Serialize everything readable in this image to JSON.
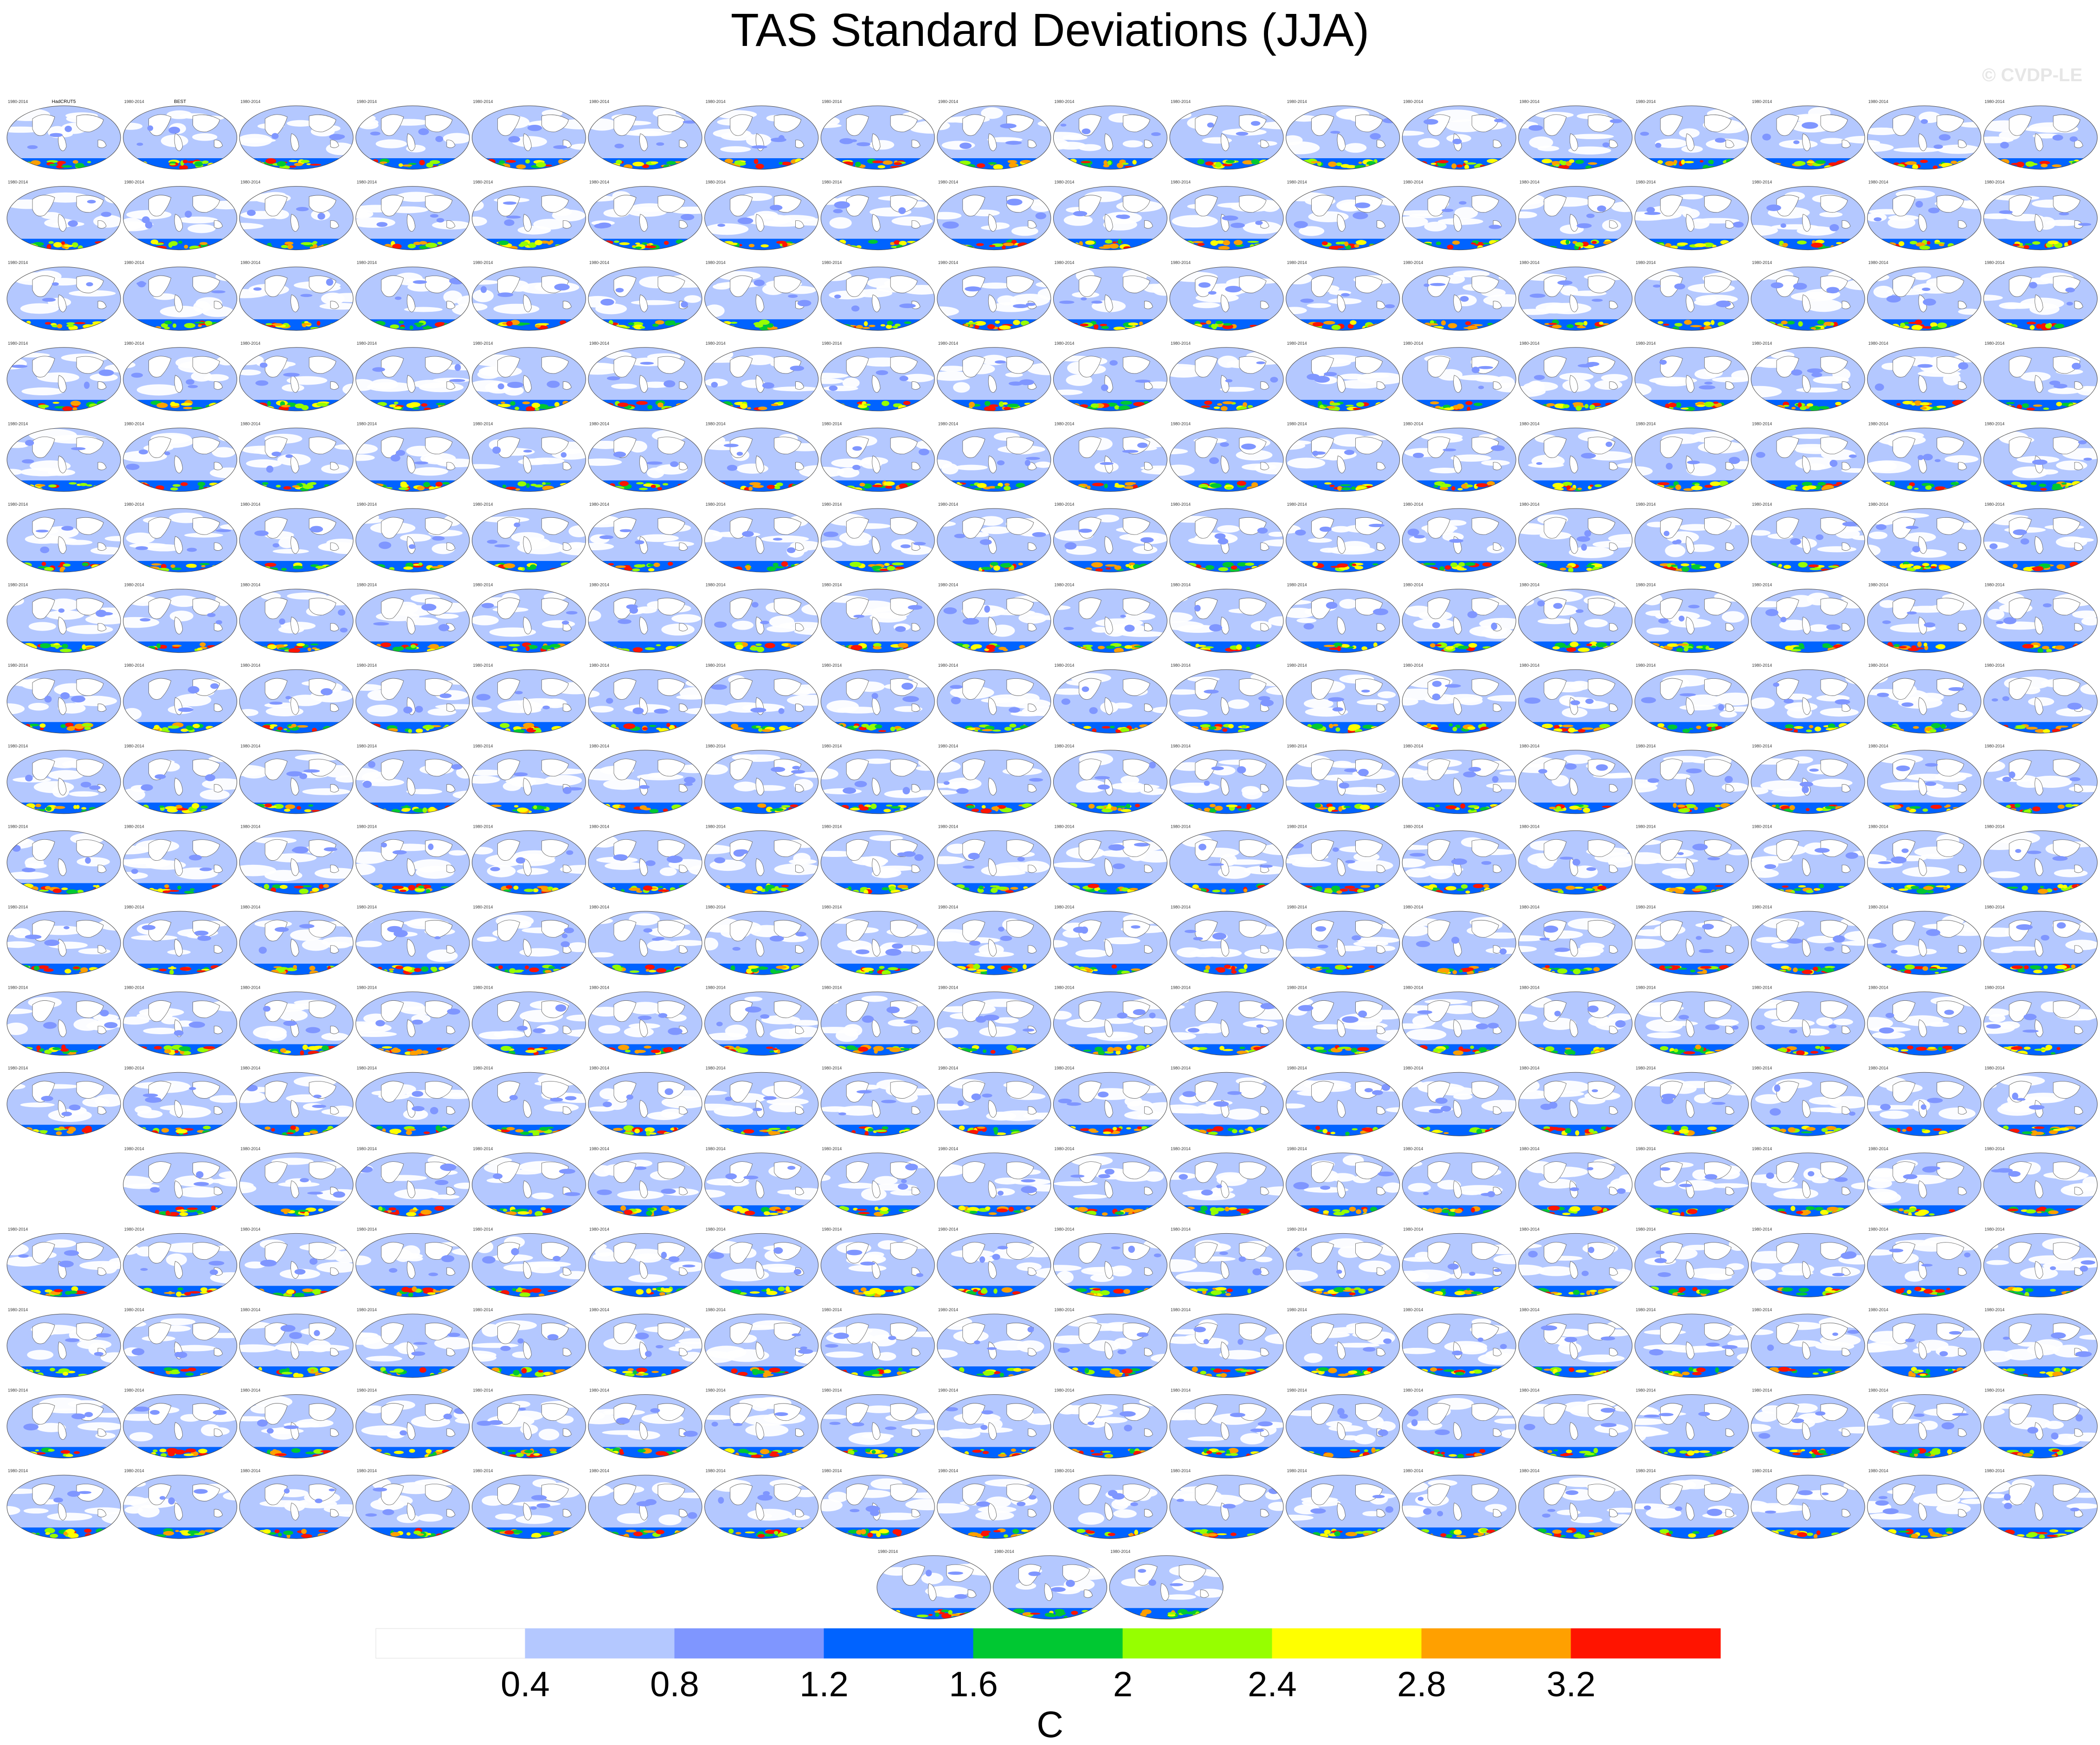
{
  "title": "TAS Standard Deviations (JJA)",
  "watermark": "© CVDP-LE",
  "chart_data": {
    "type": "heatmap",
    "title": "TAS Standard Deviations (JJA)",
    "panel_projection": "global map grid of model ensemble members",
    "panel_period_label": "1980-2014",
    "panel_titles_row1": [
      "HadCRUT5",
      "BEST"
    ],
    "panel_title_color_observed": "#000000",
    "panel_title_color_model": "#3aa0d8",
    "rows": [
      18,
      18,
      18,
      18,
      18,
      18,
      18,
      18,
      18,
      18,
      18,
      18,
      18,
      17,
      18,
      18,
      18,
      18,
      3
    ],
    "colorbar": {
      "unit_label": "C",
      "tick_labels": [
        "0.4",
        "0.8",
        "1.2",
        "1.6",
        "2",
        "2.4",
        "2.8",
        "3.2"
      ],
      "colors": [
        "#ffffff",
        "#b4c8ff",
        "#7f96ff",
        "#0063ff",
        "#00c832",
        "#96ff00",
        "#ffff00",
        "#ffa000",
        "#ff1400"
      ]
    }
  }
}
